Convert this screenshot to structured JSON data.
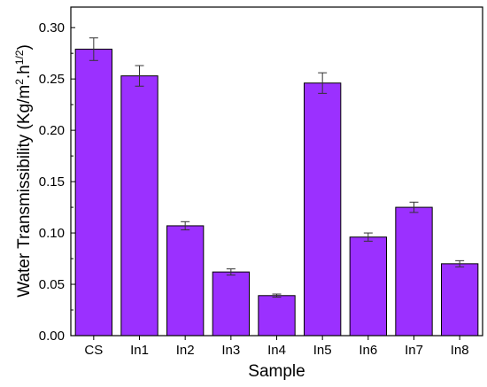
{
  "chart_data": {
    "type": "bar",
    "xlabel": "Sample",
    "ylabel_main": "Water Transmissibility (Kg/m",
    "ylabel_sup1": "2",
    "ylabel_mid": ".h",
    "ylabel_sup2": "1/2",
    "ylabel_end": ")",
    "categories": [
      "CS",
      "In1",
      "In2",
      "In3",
      "In4",
      "In5",
      "In6",
      "In7",
      "In8"
    ],
    "values": [
      0.279,
      0.253,
      0.107,
      0.062,
      0.039,
      0.246,
      0.096,
      0.125,
      0.07
    ],
    "errors": [
      0.011,
      0.01,
      0.004,
      0.003,
      0.0015,
      0.01,
      0.004,
      0.005,
      0.003
    ],
    "ylim": [
      0,
      0.32
    ],
    "yticks": [
      "0.00",
      "0.05",
      "0.10",
      "0.15",
      "0.20",
      "0.25",
      "0.30"
    ],
    "ytick_values": [
      0,
      0.05,
      0.1,
      0.15,
      0.2,
      0.25,
      0.3
    ],
    "bar_color": "#9b30ff",
    "grid": false
  }
}
